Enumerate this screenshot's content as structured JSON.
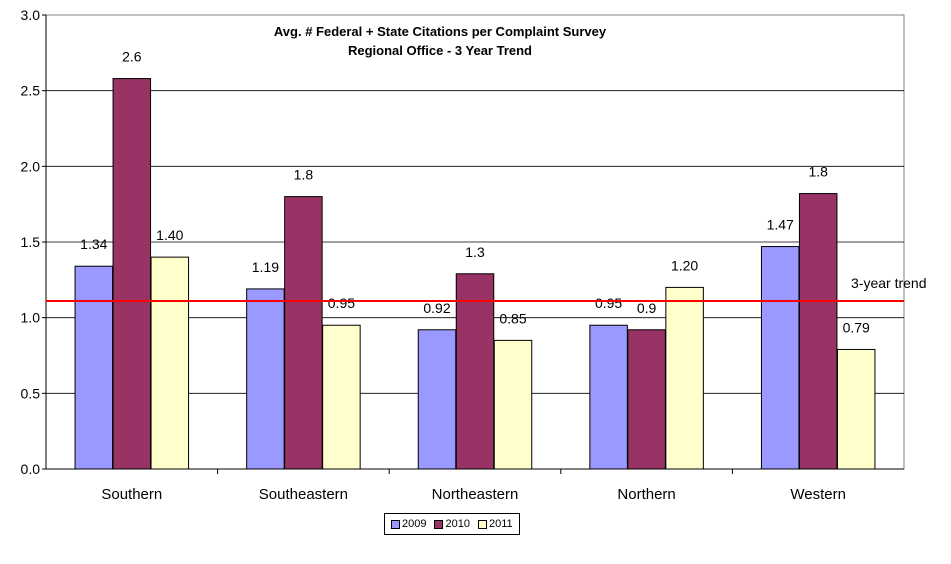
{
  "chart_data": {
    "type": "bar",
    "title_line1": "Avg. # Federal + State Citations per Complaint Survey",
    "title_line2": "Regional Office - 3 Year Trend",
    "categories": [
      "Southern",
      "Southeastern",
      "Northeastern",
      "Northern",
      "Western"
    ],
    "series": [
      {
        "name": "2009",
        "color": "#9999ff",
        "values": [
          1.34,
          1.19,
          0.92,
          0.95,
          1.47
        ],
        "labels": [
          "1.34",
          "1.19",
          "0.92",
          "0.95",
          "1.47"
        ]
      },
      {
        "name": "2010",
        "color": "#993366",
        "values": [
          2.58,
          1.8,
          1.29,
          0.92,
          1.82
        ],
        "labels": [
          "2.6",
          "1.8",
          "1.3",
          "0.9",
          "1.8"
        ]
      },
      {
        "name": "2011",
        "color": "#ffffcc",
        "values": [
          1.4,
          0.95,
          0.85,
          1.2,
          0.79
        ],
        "labels": [
          "1.40",
          "0.95",
          "0.85",
          "1.20",
          "0.79"
        ]
      }
    ],
    "ylim": [
      0,
      3.0
    ],
    "yticks": [
      "0.0",
      "0.5",
      "1.0",
      "1.5",
      "2.0",
      "2.5",
      "3.0"
    ],
    "grid": true,
    "trend": {
      "value": 1.11,
      "label": "3-year trend",
      "color": "#ff0000"
    },
    "legend_position": "bottom"
  }
}
